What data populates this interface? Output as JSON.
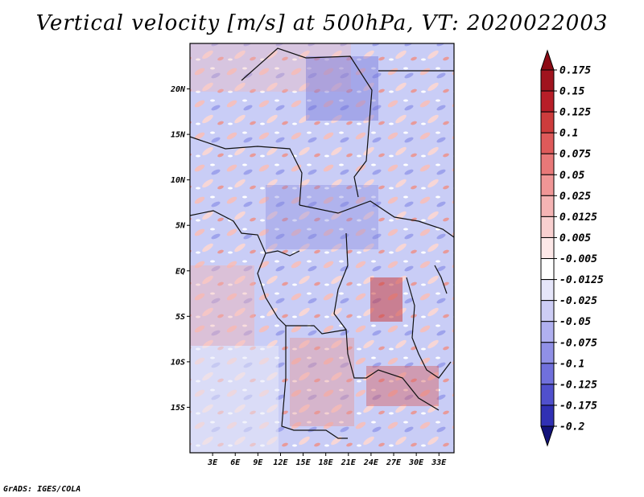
{
  "title": "Vertical velocity [m/s] at 500hPa, VT: 2020022003",
  "footer": "GrADS: IGES/COLA",
  "chart_data": {
    "type": "heatmap",
    "title": "Vertical velocity [m/s] at 500hPa, VT: 2020022003",
    "variable": "Vertical velocity",
    "units": "m/s",
    "level": "500hPa",
    "valid_time": "2020022003",
    "lon_range": [
      0,
      35
    ],
    "lat_range": [
      -20,
      25
    ],
    "x_ticks": [
      {
        "value": 3,
        "label": "3E"
      },
      {
        "value": 6,
        "label": "6E"
      },
      {
        "value": 9,
        "label": "9E"
      },
      {
        "value": 12,
        "label": "12E"
      },
      {
        "value": 15,
        "label": "15E"
      },
      {
        "value": 18,
        "label": "18E"
      },
      {
        "value": 21,
        "label": "21E"
      },
      {
        "value": 24,
        "label": "24E"
      },
      {
        "value": 27,
        "label": "27E"
      },
      {
        "value": 30,
        "label": "30E"
      },
      {
        "value": 33,
        "label": "33E"
      }
    ],
    "y_ticks": [
      {
        "value": 20,
        "label": "20N"
      },
      {
        "value": 15,
        "label": "15N"
      },
      {
        "value": 10,
        "label": "10N"
      },
      {
        "value": 5,
        "label": "5N"
      },
      {
        "value": 0,
        "label": "EQ"
      },
      {
        "value": -5,
        "label": "5S"
      },
      {
        "value": -10,
        "label": "10S"
      },
      {
        "value": -15,
        "label": "15S"
      }
    ],
    "colorbar_levels": [
      {
        "value": 0.175,
        "label": "0.175",
        "color": "#a0141e"
      },
      {
        "value": 0.15,
        "label": "0.15",
        "color": "#b81e28"
      },
      {
        "value": 0.125,
        "label": "0.125",
        "color": "#cd3c3c"
      },
      {
        "value": 0.1,
        "label": "0.1",
        "color": "#de5a5a"
      },
      {
        "value": 0.075,
        "label": "0.075",
        "color": "#e87878"
      },
      {
        "value": 0.05,
        "label": "0.05",
        "color": "#f09696"
      },
      {
        "value": 0.025,
        "label": "0.025",
        "color": "#f5b4b4"
      },
      {
        "value": 0.0125,
        "label": "0.0125",
        "color": "#f9d0d0"
      },
      {
        "value": 0.005,
        "label": "0.005",
        "color": "#fde8e8"
      },
      {
        "value": -0.005,
        "label": "-0.005",
        "color": "#ffffff"
      },
      {
        "value": -0.0125,
        "label": "-0.0125",
        "color": "#e6e6fa"
      },
      {
        "value": -0.025,
        "label": "-0.025",
        "color": "#cdcdf5"
      },
      {
        "value": -0.05,
        "label": "-0.05",
        "color": "#b0b0f0"
      },
      {
        "value": -0.075,
        "label": "-0.075",
        "color": "#9090e6"
      },
      {
        "value": -0.1,
        "label": "-0.1",
        "color": "#7070dc"
      },
      {
        "value": -0.125,
        "label": "-0.125",
        "color": "#5050cd"
      },
      {
        "value": -0.175,
        "label": "-0.175",
        "color": "#3030b4"
      },
      {
        "value": -0.2,
        "label": "-0.2",
        "color": "#1a1a96"
      }
    ],
    "colorbar_bottom_color": "#12127a",
    "colorbar_top_color": "#8c0a14"
  }
}
